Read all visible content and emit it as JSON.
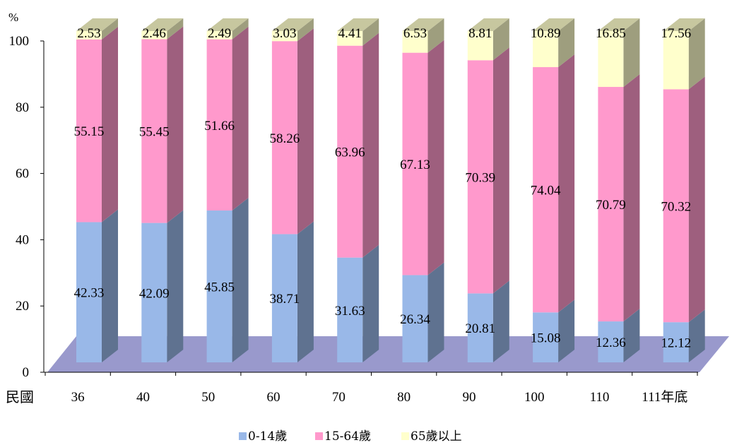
{
  "chart_data": {
    "type": "bar",
    "stacked": true,
    "three_d": true,
    "unit": "%",
    "xlabel": "民國",
    "categories": [
      "36",
      "40",
      "50",
      "60",
      "70",
      "80",
      "90",
      "100",
      "110",
      "111年底"
    ],
    "ylim": [
      0,
      100
    ],
    "yticks": [
      "0",
      "20",
      "40",
      "60",
      "80",
      "100"
    ],
    "legend_position": "bottom",
    "series": [
      {
        "name": "0-14歲",
        "color": "#99B8E8",
        "values": [
          42.33,
          42.09,
          45.85,
          38.71,
          31.63,
          26.34,
          20.81,
          15.08,
          12.36,
          12.12
        ]
      },
      {
        "name": "15-64歲",
        "color": "#FF99CC",
        "values": [
          55.15,
          55.45,
          51.66,
          58.26,
          63.96,
          67.13,
          70.39,
          74.04,
          70.79,
          70.32
        ]
      },
      {
        "name": "65歲以上",
        "color": "#FFFFCC",
        "values": [
          2.53,
          2.46,
          2.49,
          3.03,
          4.41,
          6.53,
          8.81,
          10.89,
          16.85,
          17.56
        ]
      }
    ],
    "floor_color": "#9999CC"
  }
}
